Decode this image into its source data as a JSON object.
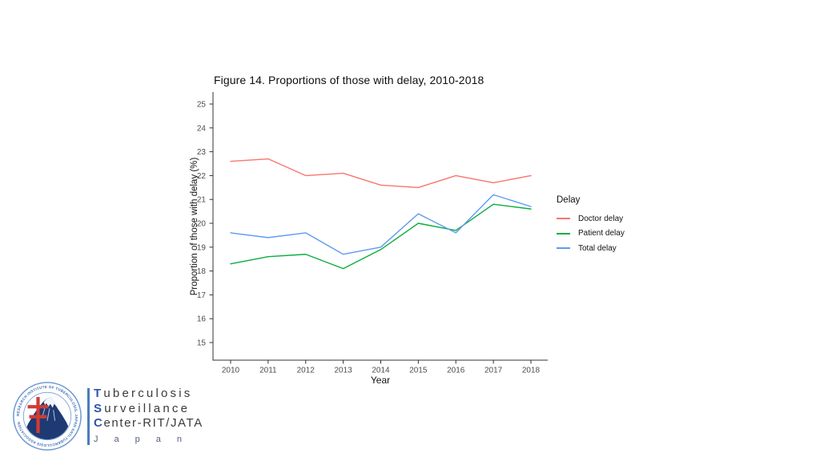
{
  "chart_data": {
    "type": "line",
    "title": "Figure 14. Proportions of those with delay, 2010-2018",
    "xlabel": "Year",
    "ylabel": "Proportion of those with delay (%)",
    "x": [
      2010,
      2011,
      2012,
      2013,
      2014,
      2015,
      2016,
      2017,
      2018
    ],
    "ylim": [
      15,
      25
    ],
    "yticks": [
      15,
      16,
      17,
      18,
      19,
      20,
      21,
      22,
      23,
      24,
      25
    ],
    "grid": false,
    "legend_title": "Delay",
    "legend_position": "right",
    "series": [
      {
        "name": "Doctor delay",
        "color": "#F8766D",
        "values": [
          22.6,
          22.7,
          22.0,
          22.1,
          21.6,
          21.5,
          22.0,
          21.7,
          22.0
        ]
      },
      {
        "name": "Patient delay",
        "color": "#0BAD3F",
        "values": [
          18.3,
          18.6,
          18.7,
          18.1,
          18.9,
          20.0,
          19.7,
          20.8,
          20.6
        ]
      },
      {
        "name": "Total delay",
        "color": "#5F9BF2",
        "values": [
          19.6,
          19.4,
          19.6,
          18.7,
          19.0,
          20.4,
          19.6,
          21.2,
          20.7
        ]
      }
    ]
  },
  "footer_logo": {
    "ring_text": "RESEARCH INSTITUTE OF TUBERCULOSIS, JAPAN ANTI-TUBERCULOSIS ASSOCIATION",
    "lines": [
      {
        "initial": "T",
        "rest": "uberculosis"
      },
      {
        "initial": "S",
        "rest": "urveillance"
      },
      {
        "initial": "C",
        "rest": "enter-RIT/JATA"
      }
    ],
    "sub": "Japan",
    "accent": "#2f55a4",
    "divider_color": "#4a7ebb",
    "cross_color": "#d23b32",
    "mountain_color": "#1d3a74"
  }
}
